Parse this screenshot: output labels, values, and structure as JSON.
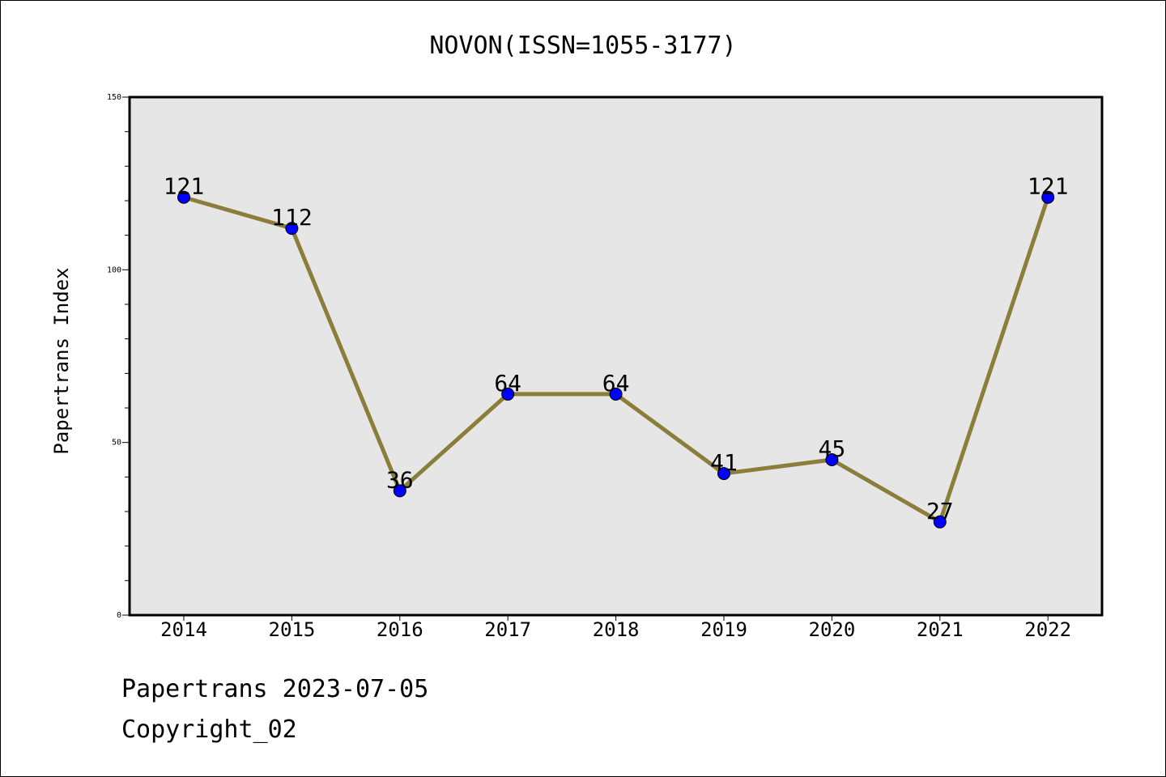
{
  "chart_data": {
    "type": "line",
    "title": "NOVON(ISSN=1055-3177)",
    "xlabel": "",
    "ylabel": "Papertrans Index",
    "categories": [
      "2014",
      "2015",
      "2016",
      "2017",
      "2018",
      "2019",
      "2020",
      "2021",
      "2022"
    ],
    "series": [
      {
        "values": [
          121,
          112,
          36,
          64,
          64,
          41,
          45,
          27,
          121
        ]
      }
    ],
    "data_labels": [
      "121",
      "112",
      "36",
      "64",
      "64",
      "41",
      "45",
      "27",
      "121"
    ],
    "ylim": [
      0,
      150
    ],
    "y_tick_labels": [
      "0",
      "50",
      "100",
      "150"
    ],
    "grid": false,
    "colors": {
      "line": "#8b7d3a",
      "marker": "#0000ff",
      "plot_background": "#e6e6e6"
    }
  },
  "footer": {
    "source": "Papertrans 2023-07-05",
    "copyright": "Copyright_02"
  }
}
